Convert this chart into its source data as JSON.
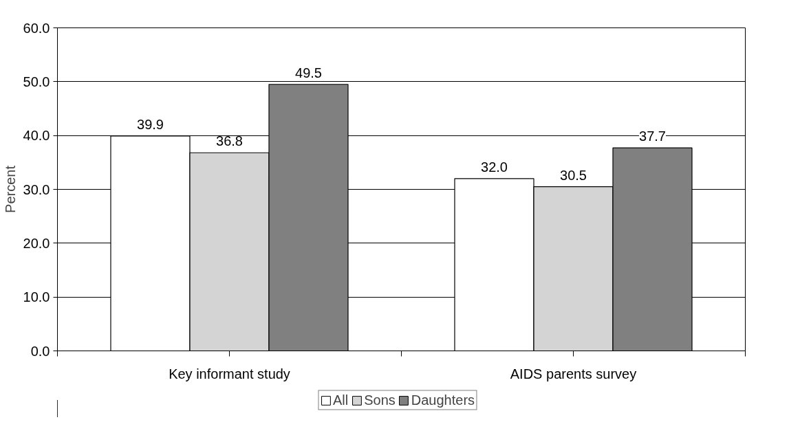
{
  "chart_data": {
    "type": "bar",
    "ylabel": "Percent",
    "categories": [
      "Key informant study",
      "AIDS parents survey"
    ],
    "series": [
      {
        "name": "All",
        "color": "#ffffff",
        "values": [
          39.9,
          32.0
        ],
        "value_labels": [
          "39.9",
          "32.0"
        ]
      },
      {
        "name": "Sons",
        "color": "#d4d4d4",
        "values": [
          36.8,
          30.5
        ],
        "value_labels": [
          "36.8",
          "30.5"
        ]
      },
      {
        "name": "Daughters",
        "color": "#808080",
        "values": [
          49.5,
          37.7
        ],
        "value_labels": [
          "49.5",
          "37.7"
        ]
      }
    ],
    "ylim": [
      0,
      60
    ],
    "yticks": [
      {
        "value": 0,
        "label": "0.0"
      },
      {
        "value": 10,
        "label": "10.0"
      },
      {
        "value": 20,
        "label": "20.0"
      },
      {
        "value": 30,
        "label": "30.0"
      },
      {
        "value": 40,
        "label": "40.0"
      },
      {
        "value": 50,
        "label": "50.0"
      },
      {
        "value": 60,
        "label": "60.0"
      }
    ],
    "grid": "y",
    "legend": "bottom"
  }
}
